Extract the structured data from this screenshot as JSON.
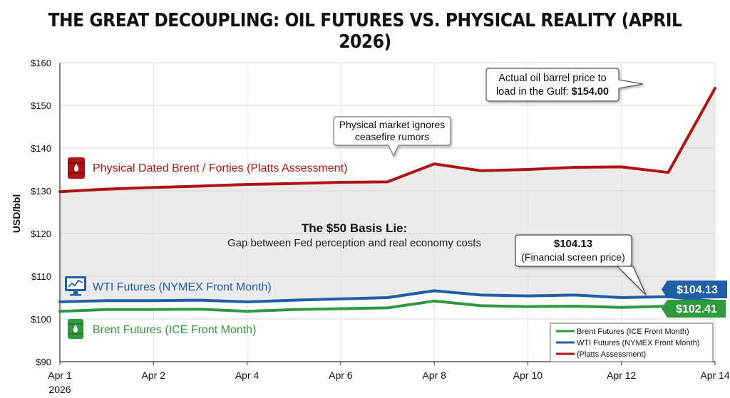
{
  "chart_data": {
    "type": "line",
    "title": "THE GREAT DECOUPLING: OIL FUTURES VS. PHYSICAL REALITY (APRIL 2026)",
    "ylabel": "USD/bbl",
    "xlabel": "",
    "ylim": [
      90,
      160
    ],
    "yticks": [
      90,
      100,
      110,
      120,
      130,
      140,
      150,
      160
    ],
    "ytick_labels": [
      "$90",
      "$100",
      "$110",
      "$120",
      "$130",
      "$140",
      "$150",
      "$160"
    ],
    "xlim": [
      1,
      15
    ],
    "xticks": [
      1,
      3,
      5,
      7,
      9,
      11,
      13,
      15
    ],
    "xtick_labels": [
      "Apr 1",
      "Apr 2",
      "Apr 4",
      "Apr 6",
      "Apr 8",
      "Apr 10",
      "Apr 12",
      "Apr 14"
    ],
    "xtick_sublabel": "2026",
    "x": [
      1,
      2,
      3,
      4,
      5,
      6,
      7,
      8,
      9,
      10,
      11,
      12,
      13,
      14,
      15
    ],
    "series": [
      {
        "name": "Physical Dated Brent / Forties (Platts Assessment)",
        "legend": "(Platts Assessment)",
        "color": "#b01313",
        "values": [
          129.8,
          130.4,
          130.8,
          131.1,
          131.5,
          131.7,
          132.0,
          132.1,
          136.3,
          134.7,
          135.0,
          135.5,
          135.6,
          134.3,
          154.0
        ]
      },
      {
        "name": "WTI Futures (NYMEX Front Month)",
        "legend": "WTI Futures (NYMEX Front Month)",
        "color": "#1f5fa8",
        "values": [
          104.0,
          104.3,
          104.3,
          104.4,
          104.0,
          104.4,
          104.7,
          105.0,
          106.6,
          105.6,
          105.4,
          105.6,
          105.0,
          105.2,
          104.13
        ]
      },
      {
        "name": "Brent Futures (ICE Front Month)",
        "legend": "Brent Futures (ICE Front Month)",
        "color": "#2e9a3e",
        "values": [
          101.8,
          102.2,
          102.2,
          102.3,
          101.8,
          102.2,
          102.4,
          102.6,
          104.2,
          103.1,
          102.9,
          103.0,
          102.7,
          103.0,
          102.41
        ]
      }
    ],
    "end_labels": {
      "wti": "$104.13",
      "brent": "$102.41"
    },
    "annotations": {
      "callout_physical_line1": "Actual oil barrel price to",
      "callout_physical_line2_prefix": "load in the Gulf: ",
      "callout_physical_value": "$154.00",
      "callout_rumor_line1": "Physical market ignores",
      "callout_rumor_line2": "ceasefire rumors",
      "basis_title": "The $50 Basis Lie:",
      "basis_subtitle": "Gap between Fed perception and real economy costs",
      "callout_screen_value": "$104.13",
      "callout_screen_sub": "(Financial screen price)"
    },
    "legend_position": "bottom-right"
  },
  "colors": {
    "physical": "#b01313",
    "wti": "#1f5fa8",
    "brent": "#2e9a3e",
    "shade": "#ebebeb"
  }
}
